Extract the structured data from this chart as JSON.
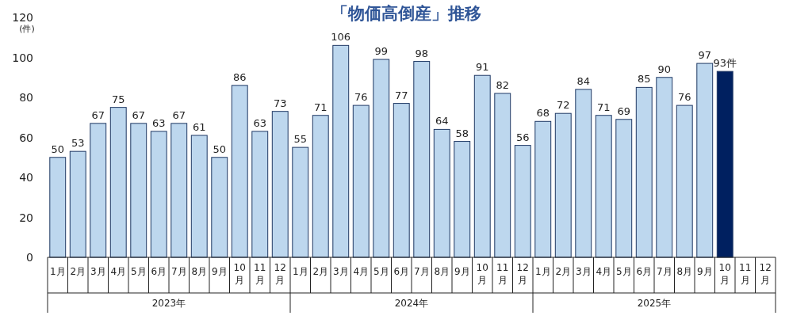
{
  "chart_data": {
    "type": "bar",
    "title": "「物価高倒産」推移",
    "ylabel": "(件)",
    "categories": [
      "1月",
      "2月",
      "3月",
      "4月",
      "5月",
      "6月",
      "7月",
      "8月",
      "9月",
      "10月",
      "11月",
      "12月",
      "1月",
      "2月",
      "3月",
      "4月",
      "5月",
      "6月",
      "7月",
      "8月",
      "9月",
      "10月",
      "11月",
      "12月",
      "1月",
      "2月",
      "3月",
      "4月",
      "5月",
      "6月",
      "7月",
      "8月",
      "9月",
      "10月",
      "11月",
      "12月"
    ],
    "values": [
      50,
      53,
      67,
      75,
      67,
      63,
      67,
      61,
      50,
      86,
      63,
      73,
      55,
      71,
      106,
      76,
      99,
      77,
      98,
      64,
      58,
      91,
      82,
      56,
      68,
      72,
      84,
      71,
      69,
      85,
      90,
      76,
      97,
      93,
      null,
      null
    ],
    "colors": [
      "#bdd7ee",
      "#bdd7ee",
      "#bdd7ee",
      "#bdd7ee",
      "#bdd7ee",
      "#bdd7ee",
      "#bdd7ee",
      "#bdd7ee",
      "#bdd7ee",
      "#bdd7ee",
      "#bdd7ee",
      "#bdd7ee",
      "#bdd7ee",
      "#bdd7ee",
      "#bdd7ee",
      "#bdd7ee",
      "#bdd7ee",
      "#bdd7ee",
      "#bdd7ee",
      "#bdd7ee",
      "#bdd7ee",
      "#bdd7ee",
      "#bdd7ee",
      "#bdd7ee",
      "#bdd7ee",
      "#bdd7ee",
      "#bdd7ee",
      "#bdd7ee",
      "#bdd7ee",
      "#bdd7ee",
      "#bdd7ee",
      "#bdd7ee",
      "#bdd7ee",
      "#002060",
      null,
      null
    ],
    "value_labels": [
      "50",
      "53",
      "67",
      "75",
      "67",
      "63",
      "67",
      "61",
      "50",
      "86",
      "63",
      "73",
      "55",
      "71",
      "106",
      "76",
      "99",
      "77",
      "98",
      "64",
      "58",
      "91",
      "82",
      "56",
      "68",
      "72",
      "84",
      "71",
      "69",
      "85",
      "90",
      "76",
      "97",
      "93件",
      null,
      null
    ],
    "ylim": [
      0,
      120
    ],
    "yticks": [
      0,
      20,
      40,
      60,
      80,
      100,
      120
    ],
    "annotations": [
      "2023年",
      "2024年",
      "2025年"
    ]
  }
}
